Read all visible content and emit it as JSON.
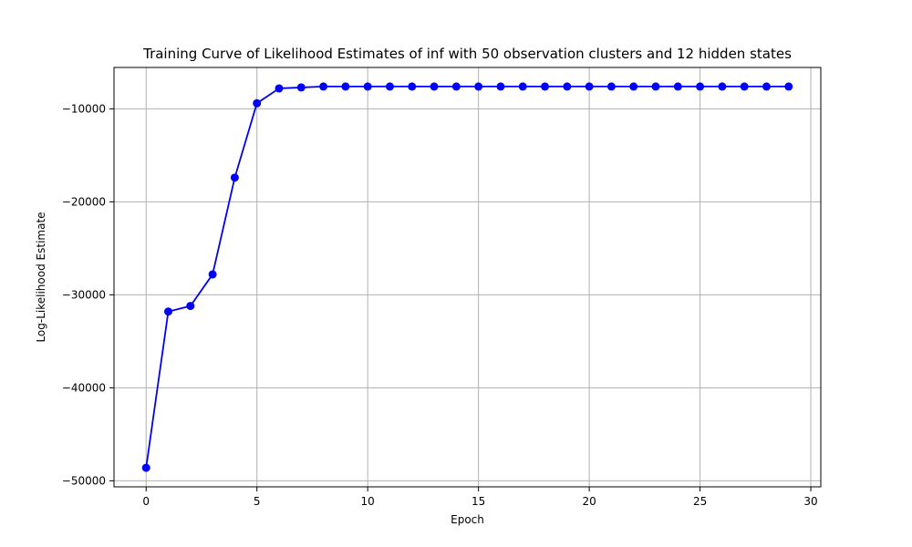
{
  "chart_data": {
    "type": "line",
    "title": "Training Curve of Likelihood Estimates of inf with 50 observation clusters and 12 hidden states",
    "xlabel": "Epoch",
    "ylabel": "Log-Likelihood Estimate",
    "x": [
      0,
      1,
      2,
      3,
      4,
      5,
      6,
      7,
      8,
      9,
      10,
      11,
      12,
      13,
      14,
      15,
      16,
      17,
      18,
      19,
      20,
      21,
      22,
      23,
      24,
      25,
      26,
      27,
      28,
      29
    ],
    "series": [
      {
        "color": "#0000ff",
        "marker": "circle",
        "values": [
          -48600,
          -31800,
          -31200,
          -27800,
          -17400,
          -9400,
          -7800,
          -7700,
          -7600,
          -7600,
          -7600,
          -7600,
          -7600,
          -7600,
          -7600,
          -7600,
          -7600,
          -7600,
          -7600,
          -7600,
          -7600,
          -7600,
          -7600,
          -7600,
          -7600,
          -7600,
          -7600,
          -7600,
          -7600,
          -7600
        ]
      }
    ],
    "xlim": [
      -1.45,
      30.45
    ],
    "ylim": [
      -50650,
      -5550
    ],
    "xticks": [
      0,
      5,
      10,
      15,
      20,
      25,
      30
    ],
    "yticks": [
      -50000,
      -40000,
      -30000,
      -20000,
      -10000
    ],
    "xtick_labels": [
      "0",
      "5",
      "10",
      "15",
      "20",
      "25",
      "30"
    ],
    "ytick_labels": [
      "−50000",
      "−40000",
      "−30000",
      "−20000",
      "−10000"
    ],
    "grid": true,
    "grid_color": "#b0b0b0"
  }
}
